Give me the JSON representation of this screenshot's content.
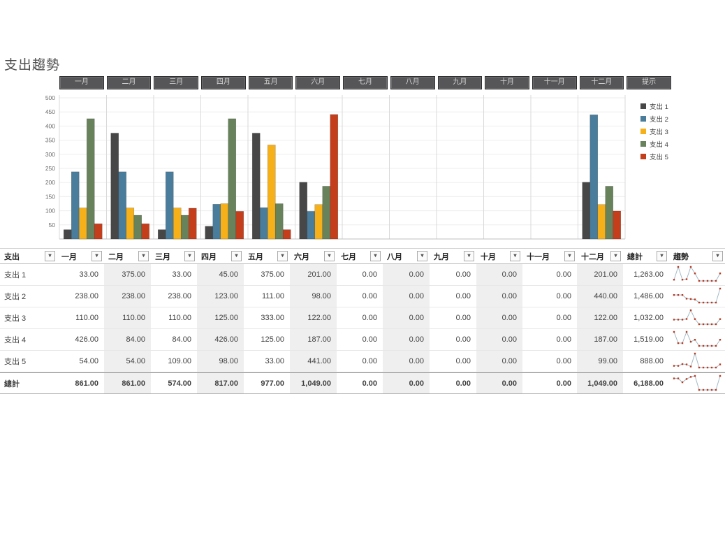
{
  "page_title": "支出趨勢",
  "toolbar": {
    "buttons": [
      "一月",
      "二月",
      "三月",
      "四月",
      "五月",
      "六月",
      "七月",
      "八月",
      "九月",
      "十月",
      "十一月",
      "十二月",
      "提示"
    ]
  },
  "chart_data": {
    "type": "bar",
    "title": "",
    "xlabel": "",
    "ylabel": "",
    "categories": [
      "一月",
      "二月",
      "三月",
      "四月",
      "五月",
      "六月",
      "七月",
      "八月",
      "九月",
      "十月",
      "十一月",
      "十二月"
    ],
    "series": [
      {
        "name": "支出 1",
        "color": "#474747",
        "values": [
          33,
          375,
          33,
          45,
          375,
          201,
          0,
          0,
          0,
          0,
          0,
          201
        ]
      },
      {
        "name": "支出 2",
        "color": "#4a7d9b",
        "values": [
          238,
          238,
          238,
          123,
          111,
          98,
          0,
          0,
          0,
          0,
          0,
          440
        ]
      },
      {
        "name": "支出 3",
        "color": "#f5b01a",
        "values": [
          110,
          110,
          110,
          125,
          333,
          122,
          0,
          0,
          0,
          0,
          0,
          122
        ]
      },
      {
        "name": "支出 4",
        "color": "#68825c",
        "values": [
          426,
          84,
          84,
          426,
          125,
          187,
          0,
          0,
          0,
          0,
          0,
          187
        ]
      },
      {
        "name": "支出 5",
        "color": "#c43e1c",
        "values": [
          54,
          54,
          109,
          98,
          33,
          441,
          0,
          0,
          0,
          0,
          0,
          99
        ]
      }
    ],
    "ylim": [
      0,
      500
    ],
    "ytick_step": 50,
    "grid": true,
    "legend_position": "right",
    "legend": [
      "支出 1",
      "支出 2",
      "支出 3",
      "支出 4",
      "支出 5"
    ]
  },
  "table": {
    "filter_icon": "▾",
    "headers": [
      "支出",
      "一月",
      "二月",
      "三月",
      "四月",
      "五月",
      "六月",
      "七月",
      "八月",
      "九月",
      "十月",
      "十一月",
      "十二月",
      "總計",
      "趨勢"
    ],
    "rows": [
      {
        "label": "支出 1",
        "monthly": [
          33,
          375,
          33,
          45,
          375,
          201,
          0,
          0,
          0,
          0,
          0,
          201
        ],
        "total": 1263
      },
      {
        "label": "支出 2",
        "monthly": [
          238,
          238,
          238,
          123,
          111,
          98,
          0,
          0,
          0,
          0,
          0,
          440
        ],
        "total": 1486
      },
      {
        "label": "支出 3",
        "monthly": [
          110,
          110,
          110,
          125,
          333,
          122,
          0,
          0,
          0,
          0,
          0,
          122
        ],
        "total": 1032
      },
      {
        "label": "支出 4",
        "monthly": [
          426,
          84,
          84,
          426,
          125,
          187,
          0,
          0,
          0,
          0,
          0,
          187
        ],
        "total": 1519
      },
      {
        "label": "支出 5",
        "monthly": [
          54,
          54,
          109,
          98,
          33,
          441,
          0,
          0,
          0,
          0,
          0,
          99
        ],
        "total": 888
      }
    ],
    "total_row": {
      "label": "總計",
      "monthly": [
        861,
        861,
        574,
        817,
        977,
        1049,
        0,
        0,
        0,
        0,
        0,
        1049
      ],
      "total": 6188
    }
  },
  "sparkline": {
    "line_color": "#a3bac7",
    "marker_color": "#b8391f"
  }
}
